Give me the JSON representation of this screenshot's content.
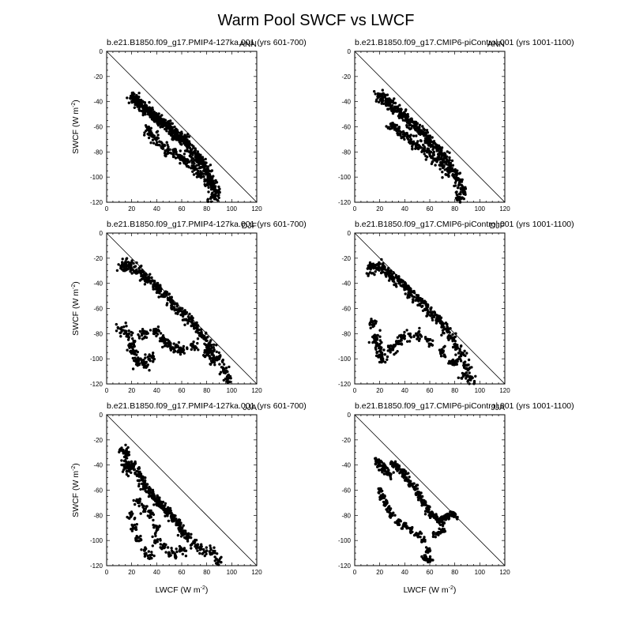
{
  "figure": {
    "title": "Warm Pool SWCF vs LWCF"
  },
  "chart_data": [
    {
      "type": "scatter",
      "title": "b.e21.B1850.f09_g17.PMIP4-127ka.001  (yrs 601-700)",
      "season": "ANN",
      "xlabel": "",
      "ylabel": "SWCF (W m-2)",
      "xlim": [
        0,
        120
      ],
      "ylim": [
        -120,
        0
      ],
      "xticks": [
        0,
        20,
        40,
        60,
        80,
        100,
        120
      ],
      "yticks": [
        0,
        -20,
        -40,
        -60,
        -80,
        -100,
        -120
      ],
      "reference_line": [
        [
          0,
          0
        ],
        [
          120,
          -120
        ]
      ],
      "shape": "fan",
      "points": [
        [
          20,
          -36
        ],
        [
          22,
          -38
        ],
        [
          24,
          -37
        ],
        [
          26,
          -40
        ],
        [
          28,
          -42
        ],
        [
          30,
          -44
        ],
        [
          32,
          -45
        ],
        [
          34,
          -47
        ],
        [
          36,
          -49
        ],
        [
          38,
          -50
        ],
        [
          40,
          -52
        ],
        [
          42,
          -54
        ],
        [
          44,
          -56
        ],
        [
          46,
          -57
        ],
        [
          48,
          -59
        ],
        [
          50,
          -60
        ],
        [
          52,
          -62
        ],
        [
          54,
          -64
        ],
        [
          56,
          -66
        ],
        [
          58,
          -67
        ],
        [
          60,
          -69
        ],
        [
          62,
          -70
        ],
        [
          64,
          -72
        ],
        [
          66,
          -75
        ],
        [
          68,
          -78
        ],
        [
          70,
          -80
        ],
        [
          72,
          -83
        ],
        [
          74,
          -86
        ],
        [
          76,
          -88
        ],
        [
          78,
          -92
        ],
        [
          80,
          -95
        ],
        [
          82,
          -100
        ],
        [
          84,
          -104
        ],
        [
          86,
          -108
        ],
        [
          88,
          -112
        ],
        [
          85,
          -116
        ],
        [
          33,
          -62
        ],
        [
          36,
          -65
        ],
        [
          40,
          -70
        ],
        [
          45,
          -75
        ],
        [
          50,
          -78
        ],
        [
          55,
          -80
        ],
        [
          60,
          -84
        ],
        [
          65,
          -88
        ],
        [
          70,
          -92
        ],
        [
          75,
          -98
        ],
        [
          80,
          -103
        ]
      ]
    },
    {
      "type": "scatter",
      "title": "b.e21.B1850.f09_g17.CMIP6-piControl.001  (yrs 1001-1100)",
      "season": "ANN",
      "xlabel": "",
      "ylabel": "",
      "xlim": [
        0,
        120
      ],
      "ylim": [
        -120,
        0
      ],
      "xticks": [
        0,
        20,
        40,
        60,
        80,
        100,
        120
      ],
      "yticks": [
        0,
        -20,
        -40,
        -60,
        -80,
        -100,
        -120
      ],
      "reference_line": [
        [
          0,
          0
        ],
        [
          120,
          -120
        ]
      ],
      "shape": "fan",
      "points": [
        [
          20,
          -36
        ],
        [
          22,
          -37
        ],
        [
          25,
          -39
        ],
        [
          28,
          -41
        ],
        [
          30,
          -43
        ],
        [
          33,
          -45
        ],
        [
          36,
          -48
        ],
        [
          39,
          -50
        ],
        [
          42,
          -53
        ],
        [
          45,
          -56
        ],
        [
          48,
          -58
        ],
        [
          51,
          -61
        ],
        [
          54,
          -64
        ],
        [
          57,
          -67
        ],
        [
          60,
          -70
        ],
        [
          63,
          -73
        ],
        [
          66,
          -76
        ],
        [
          69,
          -80
        ],
        [
          72,
          -84
        ],
        [
          75,
          -88
        ],
        [
          78,
          -93
        ],
        [
          81,
          -98
        ],
        [
          84,
          -104
        ],
        [
          86,
          -110
        ],
        [
          84,
          -116
        ],
        [
          30,
          -58
        ],
        [
          35,
          -62
        ],
        [
          40,
          -66
        ],
        [
          45,
          -70
        ],
        [
          50,
          -74
        ],
        [
          55,
          -78
        ],
        [
          60,
          -82
        ],
        [
          65,
          -86
        ],
        [
          70,
          -90
        ],
        [
          75,
          -96
        ]
      ]
    },
    {
      "type": "scatter",
      "title": "b.e21.B1850.f09_g17.PMIP4-127ka.001  (yrs 601-700)",
      "season": "DJF",
      "xlabel": "",
      "ylabel": "SWCF (W m-2)",
      "xlim": [
        0,
        120
      ],
      "ylim": [
        -120,
        0
      ],
      "xticks": [
        0,
        20,
        40,
        60,
        80,
        100,
        120
      ],
      "yticks": [
        0,
        -20,
        -40,
        -60,
        -80,
        -100,
        -120
      ],
      "reference_line": [
        [
          0,
          0
        ],
        [
          120,
          -120
        ]
      ],
      "shape": "fan",
      "points": [
        [
          12,
          -26
        ],
        [
          15,
          -24
        ],
        [
          18,
          -25
        ],
        [
          22,
          -27
        ],
        [
          26,
          -30
        ],
        [
          30,
          -33
        ],
        [
          34,
          -36
        ],
        [
          38,
          -40
        ],
        [
          42,
          -44
        ],
        [
          46,
          -48
        ],
        [
          50,
          -52
        ],
        [
          54,
          -56
        ],
        [
          58,
          -60
        ],
        [
          62,
          -64
        ],
        [
          66,
          -68
        ],
        [
          70,
          -72
        ],
        [
          74,
          -77
        ],
        [
          78,
          -82
        ],
        [
          82,
          -88
        ],
        [
          86,
          -93
        ],
        [
          90,
          -100
        ],
        [
          94,
          -108
        ],
        [
          97,
          -115
        ],
        [
          12,
          -75
        ],
        [
          18,
          -80
        ],
        [
          20,
          -88
        ],
        [
          22,
          -94
        ],
        [
          25,
          -102
        ],
        [
          30,
          -104
        ],
        [
          35,
          -98
        ],
        [
          30,
          -80
        ],
        [
          40,
          -78
        ],
        [
          45,
          -84
        ],
        [
          50,
          -88
        ],
        [
          55,
          -90
        ],
        [
          60,
          -92
        ],
        [
          70,
          -90
        ],
        [
          80,
          -95
        ],
        [
          85,
          -100
        ]
      ]
    },
    {
      "type": "scatter",
      "title": "b.e21.B1850.f09_g17.CMIP6-piControl.001  (yrs 1001-1100)",
      "season": "DJF",
      "xlabel": "",
      "ylabel": "",
      "xlim": [
        0,
        120
      ],
      "ylim": [
        -120,
        0
      ],
      "xticks": [
        0,
        20,
        40,
        60,
        80,
        100,
        120
      ],
      "yticks": [
        0,
        -20,
        -40,
        -60,
        -80,
        -100,
        -120
      ],
      "reference_line": [
        [
          0,
          0
        ],
        [
          120,
          -120
        ]
      ],
      "shape": "fan",
      "points": [
        [
          12,
          -28
        ],
        [
          15,
          -26
        ],
        [
          18,
          -25
        ],
        [
          22,
          -27
        ],
        [
          26,
          -30
        ],
        [
          30,
          -33
        ],
        [
          34,
          -36
        ],
        [
          38,
          -39
        ],
        [
          42,
          -43
        ],
        [
          46,
          -47
        ],
        [
          50,
          -51
        ],
        [
          54,
          -55
        ],
        [
          58,
          -59
        ],
        [
          62,
          -63
        ],
        [
          66,
          -67
        ],
        [
          70,
          -72
        ],
        [
          74,
          -77
        ],
        [
          78,
          -83
        ],
        [
          82,
          -89
        ],
        [
          86,
          -96
        ],
        [
          90,
          -105
        ],
        [
          92,
          -116
        ],
        [
          14,
          -70
        ],
        [
          16,
          -82
        ],
        [
          18,
          -88
        ],
        [
          20,
          -94
        ],
        [
          22,
          -98
        ],
        [
          30,
          -92
        ],
        [
          35,
          -86
        ],
        [
          40,
          -82
        ],
        [
          50,
          -80
        ],
        [
          60,
          -85
        ],
        [
          70,
          -94
        ],
        [
          80,
          -102
        ],
        [
          88,
          -112
        ]
      ]
    },
    {
      "type": "scatter",
      "title": "b.e21.B1850.f09_g17.PMIP4-127ka.001  (yrs 601-700)",
      "season": "JJA",
      "xlabel": "LWCF (W m-2)",
      "ylabel": "SWCF (W m-2)",
      "xlim": [
        0,
        120
      ],
      "ylim": [
        -120,
        0
      ],
      "xticks": [
        0,
        20,
        40,
        60,
        80,
        100,
        120
      ],
      "yticks": [
        0,
        -20,
        -40,
        -60,
        -80,
        -100,
        -120
      ],
      "reference_line": [
        [
          0,
          0
        ],
        [
          120,
          -120
        ]
      ],
      "shape": "cloud",
      "points": [
        [
          13,
          -28
        ],
        [
          15,
          -33
        ],
        [
          17,
          -30
        ],
        [
          14,
          -40
        ],
        [
          18,
          -38
        ],
        [
          16,
          -45
        ],
        [
          20,
          -42
        ],
        [
          22,
          -40
        ],
        [
          24,
          -45
        ],
        [
          26,
          -48
        ],
        [
          28,
          -52
        ],
        [
          30,
          -55
        ],
        [
          32,
          -58
        ],
        [
          34,
          -60
        ],
        [
          36,
          -62
        ],
        [
          38,
          -65
        ],
        [
          40,
          -68
        ],
        [
          42,
          -70
        ],
        [
          44,
          -72
        ],
        [
          46,
          -74
        ],
        [
          48,
          -76
        ],
        [
          50,
          -78
        ],
        [
          52,
          -80
        ],
        [
          54,
          -82
        ],
        [
          56,
          -85
        ],
        [
          58,
          -88
        ],
        [
          60,
          -92
        ],
        [
          62,
          -95
        ],
        [
          65,
          -98
        ],
        [
          70,
          -102
        ],
        [
          75,
          -105
        ],
        [
          80,
          -108
        ],
        [
          85,
          -110
        ],
        [
          90,
          -116
        ],
        [
          20,
          -80
        ],
        [
          22,
          -90
        ],
        [
          25,
          -98
        ],
        [
          30,
          -108
        ],
        [
          35,
          -112
        ],
        [
          40,
          -100
        ],
        [
          45,
          -105
        ],
        [
          50,
          -110
        ],
        [
          55,
          -112
        ],
        [
          60,
          -108
        ],
        [
          25,
          -70
        ],
        [
          30,
          -75
        ],
        [
          35,
          -80
        ],
        [
          40,
          -90
        ]
      ]
    },
    {
      "type": "scatter",
      "title": "b.e21.B1850.f09_g17.CMIP6-piControl.001  (yrs 1001-1100)",
      "season": "JJA",
      "xlabel": "LWCF (W m-2)",
      "ylabel": "",
      "xlim": [
        0,
        120
      ],
      "ylim": [
        -120,
        0
      ],
      "xticks": [
        0,
        20,
        40,
        60,
        80,
        100,
        120
      ],
      "yticks": [
        0,
        -20,
        -40,
        -60,
        -80,
        -100,
        -120
      ],
      "reference_line": [
        [
          0,
          0
        ],
        [
          120,
          -120
        ]
      ],
      "shape": "band",
      "points": [
        [
          18,
          -36
        ],
        [
          20,
          -40
        ],
        [
          22,
          -44
        ],
        [
          24,
          -42
        ],
        [
          26,
          -46
        ],
        [
          28,
          -48
        ],
        [
          30,
          -38
        ],
        [
          32,
          -40
        ],
        [
          35,
          -42
        ],
        [
          38,
          -45
        ],
        [
          40,
          -48
        ],
        [
          42,
          -52
        ],
        [
          45,
          -55
        ],
        [
          48,
          -58
        ],
        [
          50,
          -62
        ],
        [
          52,
          -66
        ],
        [
          55,
          -70
        ],
        [
          58,
          -74
        ],
        [
          60,
          -78
        ],
        [
          62,
          -80
        ],
        [
          65,
          -82
        ],
        [
          68,
          -84
        ],
        [
          70,
          -85
        ],
        [
          72,
          -82
        ],
        [
          75,
          -80
        ],
        [
          78,
          -78
        ],
        [
          80,
          -80
        ],
        [
          20,
          -60
        ],
        [
          22,
          -65
        ],
        [
          25,
          -70
        ],
        [
          28,
          -75
        ],
        [
          30,
          -80
        ],
        [
          35,
          -85
        ],
        [
          40,
          -88
        ],
        [
          45,
          -92
        ],
        [
          50,
          -95
        ],
        [
          55,
          -100
        ],
        [
          58,
          -108
        ],
        [
          60,
          -115
        ],
        [
          56,
          -113
        ],
        [
          65,
          -95
        ],
        [
          70,
          -92
        ]
      ]
    }
  ]
}
